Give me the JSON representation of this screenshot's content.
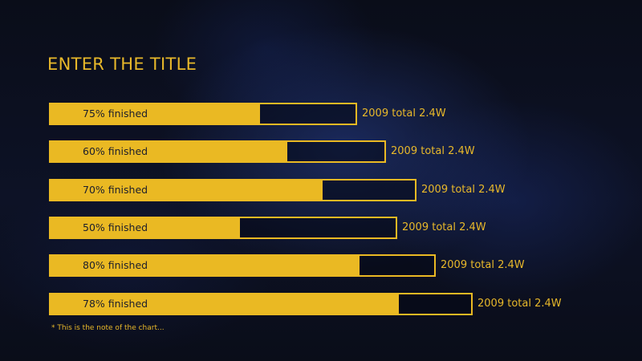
{
  "slide": {
    "title": "ENTER THE TITLE",
    "note": "* This is the note of the chart..."
  },
  "colors": {
    "accent": "#eab923",
    "background": "#0b0f1e",
    "label_text": "#1b1d2c"
  },
  "chart_data": {
    "type": "bar",
    "orientation": "horizontal",
    "title": "ENTER THE TITLE",
    "grid": false,
    "bars": [
      {
        "label": "75% finished",
        "value": 75,
        "note": "2009 total 2.4W"
      },
      {
        "label": "60% finished",
        "value": 60,
        "note": "2009 total 2.4W"
      },
      {
        "label": "70% finished",
        "value": 70,
        "note": "2009 total 2.4W"
      },
      {
        "label": "50% finished",
        "value": 50,
        "note": "2009 total 2.4W"
      },
      {
        "label": "80% finished",
        "value": 80,
        "note": "2009 total 2.4W"
      },
      {
        "label": "78% finished",
        "value": 78,
        "note": "2009 total 2.4W"
      }
    ],
    "annotation": "* This is the note of the chart..."
  }
}
